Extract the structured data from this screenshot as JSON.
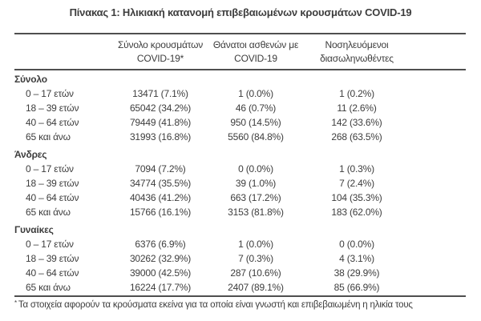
{
  "title": "Πίνακας 1: Ηλικιακή κατανομή επιβεβαιωμένων κρουσμάτων COVID-19",
  "colors": {
    "text": "#3d3d3d",
    "rule": "#4f4f4f",
    "background": "#ffffff"
  },
  "table": {
    "columns": [
      {
        "line1": "Σύνολο κρουσμάτων",
        "line2": "COVID-19*"
      },
      {
        "line1": "Θάνατοι ασθενών με",
        "line2": "COVID-19"
      },
      {
        "line1": "Νοσηλευόμενοι",
        "line2": "διασωληνωθέντες"
      }
    ],
    "sections": [
      {
        "label": "Σύνολο",
        "rows": [
          {
            "label": "0 – 17 ετών",
            "cases": "13471 (7.1%)",
            "deaths": "1 (0.0%)",
            "intubated": "1 (0.2%)"
          },
          {
            "label": "18 – 39 ετών",
            "cases": "65042 (34.2%)",
            "deaths": "46 (0.7%)",
            "intubated": "11 (2.6%)"
          },
          {
            "label": "40 – 64 ετών",
            "cases": "79449 (41.8%)",
            "deaths": "950 (14.5%)",
            "intubated": "142 (33.6%)"
          },
          {
            "label": "65 και άνω",
            "cases": "31993 (16.8%)",
            "deaths": "5560 (84.8%)",
            "intubated": "268 (63.5%)"
          }
        ]
      },
      {
        "label": "Άνδρες",
        "rows": [
          {
            "label": "0 – 17 ετών",
            "cases": "7094 (7.2%)",
            "deaths": "0 (0.0%)",
            "intubated": "1 (0.3%)"
          },
          {
            "label": "18 – 39 ετών",
            "cases": "34774 (35.5%)",
            "deaths": "39 (1.0%)",
            "intubated": "7 (2.4%)"
          },
          {
            "label": "40 – 64 ετών",
            "cases": "40436 (41.2%)",
            "deaths": "663 (17.2%)",
            "intubated": "104 (35.3%)"
          },
          {
            "label": "65 και άνω",
            "cases": "15766 (16.1%)",
            "deaths": "3153 (81.8%)",
            "intubated": "183 (62.0%)"
          }
        ]
      },
      {
        "label": "Γυναίκες",
        "rows": [
          {
            "label": "0 – 17 ετών",
            "cases": "6376 (6.9%)",
            "deaths": "1 (0.0%)",
            "intubated": "0 (0.0%)"
          },
          {
            "label": "18 – 39 ετών",
            "cases": "30262 (32.9%)",
            "deaths": "7 (0.3%)",
            "intubated": "4 (3.1%)"
          },
          {
            "label": "40 – 64 ετών",
            "cases": "39000 (42.5%)",
            "deaths": "287 (10.6%)",
            "intubated": "38 (29.9%)"
          },
          {
            "label": "65 και άνω",
            "cases": "16224 (17.7%)",
            "deaths": "2407 (89.1%)",
            "intubated": "85 (66.9%)"
          }
        ]
      }
    ],
    "footnote_marker": "*",
    "footnote": "Τα στοιχεία αφορούν τα κρούσματα εκείνα για τα οποία είναι γνωστή και επιβεβαιωμένη η ηλικία τους"
  }
}
